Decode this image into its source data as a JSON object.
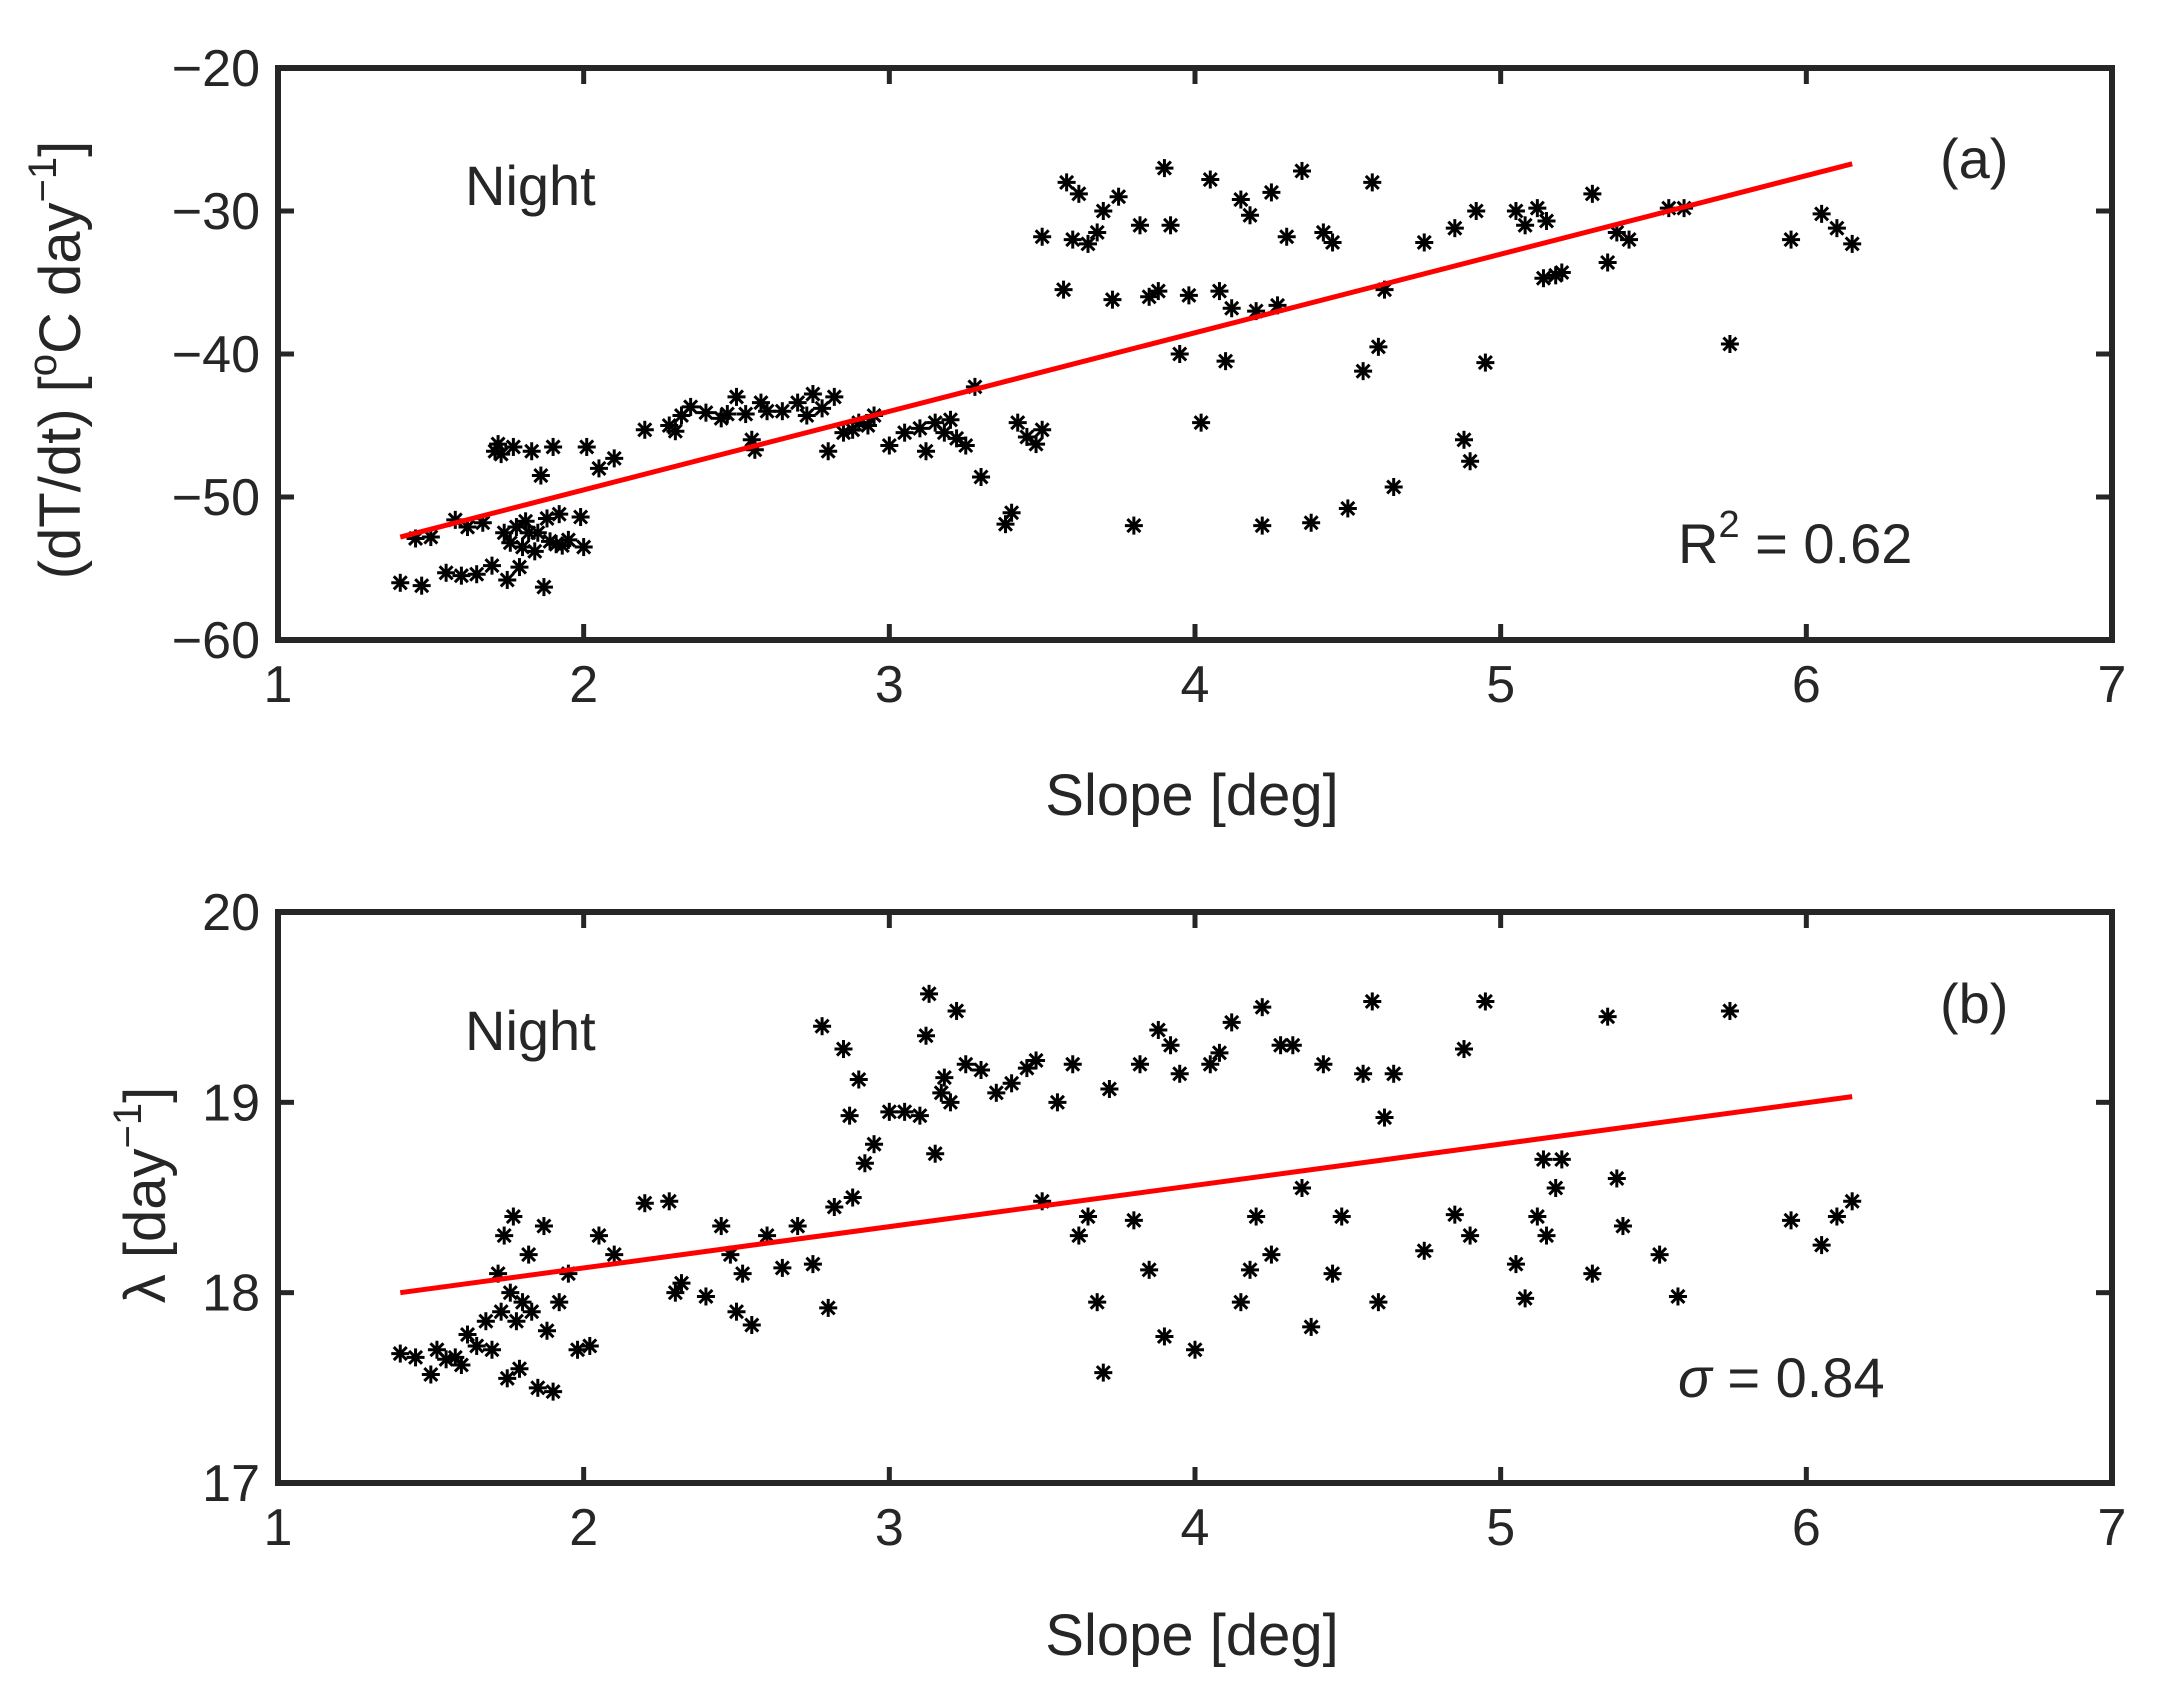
{
  "chart_data": [
    {
      "type": "scatter",
      "panel_label": "(a)",
      "annotation_title": "Night",
      "stat": {
        "prefix": "R",
        "superscript": "2",
        "suffix": " = 0.62"
      },
      "xlabel": "Slope [deg]",
      "ylabel": {
        "main": "(dT/dt) [",
        "sup1": "o",
        "mid": "C day",
        "sup2": "−1",
        "end": "]"
      },
      "xlim": [
        1,
        7
      ],
      "ylim": [
        -60,
        -20
      ],
      "xticks": [
        1,
        2,
        3,
        4,
        5,
        6,
        7
      ],
      "yticks": [
        -60,
        -50,
        -40,
        -30,
        -20
      ],
      "ytick_labels": [
        "−60",
        "−50",
        "−40",
        "−30",
        "−20"
      ],
      "marker": "asterisk",
      "marker_color": "#000000",
      "fit_color": "#ff0000",
      "fit_line": {
        "x": [
          1.4,
          6.15
        ],
        "y": [
          -52.8,
          -26.7
        ]
      },
      "points": [
        [
          1.4,
          -56.0
        ],
        [
          1.47,
          -56.2
        ],
        [
          1.45,
          -52.9
        ],
        [
          1.5,
          -52.8
        ],
        [
          1.55,
          -55.3
        ],
        [
          1.58,
          -51.6
        ],
        [
          1.6,
          -55.5
        ],
        [
          1.62,
          -52.1
        ],
        [
          1.65,
          -55.4
        ],
        [
          1.67,
          -51.8
        ],
        [
          1.7,
          -54.8
        ],
        [
          1.71,
          -46.8
        ],
        [
          1.72,
          -46.3
        ],
        [
          1.73,
          -47.0
        ],
        [
          1.74,
          -52.5
        ],
        [
          1.75,
          -55.8
        ],
        [
          1.76,
          -53.2
        ],
        [
          1.77,
          -46.5
        ],
        [
          1.78,
          -52.1
        ],
        [
          1.79,
          -54.9
        ],
        [
          1.8,
          -53.5
        ],
        [
          1.81,
          -51.7
        ],
        [
          1.82,
          -52.5
        ],
        [
          1.83,
          -46.8
        ],
        [
          1.84,
          -53.8
        ],
        [
          1.85,
          -52.5
        ],
        [
          1.86,
          -48.5
        ],
        [
          1.87,
          -56.3
        ],
        [
          1.88,
          -51.5
        ],
        [
          1.89,
          -53.1
        ],
        [
          1.9,
          -46.5
        ],
        [
          1.91,
          -53.3
        ],
        [
          1.92,
          -51.2
        ],
        [
          1.93,
          -53.4
        ],
        [
          1.95,
          -53.0
        ],
        [
          1.99,
          -51.4
        ],
        [
          2.0,
          -53.5
        ],
        [
          2.01,
          -46.5
        ],
        [
          2.05,
          -48.0
        ],
        [
          2.1,
          -47.3
        ],
        [
          2.2,
          -45.3
        ],
        [
          2.28,
          -45.0
        ],
        [
          2.3,
          -45.4
        ],
        [
          2.32,
          -44.3
        ],
        [
          2.35,
          -43.7
        ],
        [
          2.4,
          -44.1
        ],
        [
          2.45,
          -44.5
        ],
        [
          2.47,
          -44.2
        ],
        [
          2.5,
          -43.0
        ],
        [
          2.53,
          -44.2
        ],
        [
          2.55,
          -46.0
        ],
        [
          2.56,
          -46.7
        ],
        [
          2.58,
          -43.4
        ],
        [
          2.6,
          -44.0
        ],
        [
          2.65,
          -44.0
        ],
        [
          2.7,
          -43.4
        ],
        [
          2.73,
          -44.3
        ],
        [
          2.75,
          -42.8
        ],
        [
          2.78,
          -43.8
        ],
        [
          2.8,
          -46.8
        ],
        [
          2.82,
          -43.0
        ],
        [
          2.85,
          -45.5
        ],
        [
          2.88,
          -45.3
        ],
        [
          2.9,
          -44.8
        ],
        [
          2.93,
          -45.0
        ],
        [
          2.95,
          -44.3
        ],
        [
          3.0,
          -46.4
        ],
        [
          3.05,
          -45.5
        ],
        [
          3.1,
          -45.2
        ],
        [
          3.12,
          -46.8
        ],
        [
          3.15,
          -44.8
        ],
        [
          3.18,
          -45.5
        ],
        [
          3.2,
          -44.6
        ],
        [
          3.22,
          -45.9
        ],
        [
          3.25,
          -46.4
        ],
        [
          3.28,
          -42.3
        ],
        [
          3.3,
          -48.6
        ],
        [
          3.38,
          -51.9
        ],
        [
          3.4,
          -51.1
        ],
        [
          3.42,
          -44.8
        ],
        [
          3.45,
          -45.8
        ],
        [
          3.48,
          -46.3
        ],
        [
          3.5,
          -45.3
        ],
        [
          3.5,
          -31.8
        ],
        [
          3.57,
          -35.5
        ],
        [
          3.58,
          -28.0
        ],
        [
          3.6,
          -32.0
        ],
        [
          3.62,
          -28.8
        ],
        [
          3.65,
          -32.3
        ],
        [
          3.68,
          -31.5
        ],
        [
          3.7,
          -30.0
        ],
        [
          3.73,
          -36.2
        ],
        [
          3.75,
          -29.0
        ],
        [
          3.8,
          -52.0
        ],
        [
          3.82,
          -31.0
        ],
        [
          3.85,
          -36.0
        ],
        [
          3.88,
          -35.6
        ],
        [
          3.9,
          -27.0
        ],
        [
          3.92,
          -31.0
        ],
        [
          3.95,
          -40.0
        ],
        [
          3.98,
          -35.9
        ],
        [
          4.02,
          -44.8
        ],
        [
          4.05,
          -27.8
        ],
        [
          4.08,
          -35.6
        ],
        [
          4.1,
          -40.5
        ],
        [
          4.12,
          -36.8
        ],
        [
          4.15,
          -29.2
        ],
        [
          4.18,
          -30.3
        ],
        [
          4.2,
          -37.0
        ],
        [
          4.22,
          -52.0
        ],
        [
          4.25,
          -28.7
        ],
        [
          4.27,
          -36.6
        ],
        [
          4.3,
          -31.8
        ],
        [
          4.35,
          -27.2
        ],
        [
          4.38,
          -51.8
        ],
        [
          4.42,
          -31.5
        ],
        [
          4.45,
          -32.2
        ],
        [
          4.5,
          -50.8
        ],
        [
          4.55,
          -41.2
        ],
        [
          4.58,
          -28.0
        ],
        [
          4.6,
          -39.5
        ],
        [
          4.62,
          -35.5
        ],
        [
          4.65,
          -49.3
        ],
        [
          4.75,
          -32.2
        ],
        [
          4.85,
          -31.2
        ],
        [
          4.88,
          -46.0
        ],
        [
          4.9,
          -47.5
        ],
        [
          4.92,
          -30.0
        ],
        [
          4.95,
          -40.6
        ],
        [
          5.05,
          -30.0
        ],
        [
          5.08,
          -31.0
        ],
        [
          5.12,
          -29.8
        ],
        [
          5.14,
          -34.7
        ],
        [
          5.15,
          -30.7
        ],
        [
          5.18,
          -34.5
        ],
        [
          5.2,
          -34.3
        ],
        [
          5.3,
          -28.8
        ],
        [
          5.35,
          -33.6
        ],
        [
          5.38,
          -31.5
        ],
        [
          5.42,
          -32.0
        ],
        [
          5.55,
          -29.8
        ],
        [
          5.6,
          -29.8
        ],
        [
          5.75,
          -39.3
        ],
        [
          5.95,
          -32.0
        ],
        [
          6.05,
          -30.2
        ],
        [
          6.1,
          -31.2
        ],
        [
          6.15,
          -32.3
        ]
      ]
    },
    {
      "type": "scatter",
      "panel_label": "(b)",
      "annotation_title": "Night",
      "stat": {
        "symbol": "σ",
        "suffix": " = 0.84"
      },
      "xlabel": "Slope [deg]",
      "ylabel": {
        "main": "λ [day",
        "sup": "−1",
        "end": "]"
      },
      "xlim": [
        1,
        7
      ],
      "ylim": [
        17,
        20
      ],
      "xticks": [
        1,
        2,
        3,
        4,
        5,
        6,
        7
      ],
      "yticks": [
        17,
        18,
        19,
        20
      ],
      "ytick_labels": [
        "17",
        "18",
        "19",
        "20"
      ],
      "marker": "asterisk",
      "marker_color": "#000000",
      "fit_color": "#ff0000",
      "fit_line": {
        "x": [
          1.4,
          6.15
        ],
        "y": [
          18.0,
          19.03
        ]
      },
      "points": [
        [
          1.4,
          17.68
        ],
        [
          1.45,
          17.66
        ],
        [
          1.5,
          17.57
        ],
        [
          1.52,
          17.7
        ],
        [
          1.55,
          17.65
        ],
        [
          1.58,
          17.66
        ],
        [
          1.6,
          17.62
        ],
        [
          1.62,
          17.78
        ],
        [
          1.65,
          17.72
        ],
        [
          1.68,
          17.85
        ],
        [
          1.7,
          17.7
        ],
        [
          1.72,
          18.1
        ],
        [
          1.73,
          17.9
        ],
        [
          1.74,
          18.3
        ],
        [
          1.75,
          17.55
        ],
        [
          1.76,
          18.0
        ],
        [
          1.77,
          18.4
        ],
        [
          1.78,
          17.85
        ],
        [
          1.79,
          17.6
        ],
        [
          1.8,
          17.95
        ],
        [
          1.82,
          18.2
        ],
        [
          1.83,
          17.9
        ],
        [
          1.85,
          17.5
        ],
        [
          1.87,
          18.35
        ],
        [
          1.88,
          17.8
        ],
        [
          1.9,
          17.48
        ],
        [
          1.92,
          17.95
        ],
        [
          1.95,
          18.1
        ],
        [
          1.98,
          17.7
        ],
        [
          2.02,
          17.72
        ],
        [
          2.05,
          18.3
        ],
        [
          2.1,
          18.2
        ],
        [
          2.2,
          18.47
        ],
        [
          2.28,
          18.48
        ],
        [
          2.3,
          18.0
        ],
        [
          2.32,
          18.05
        ],
        [
          2.4,
          17.98
        ],
        [
          2.45,
          18.35
        ],
        [
          2.48,
          18.2
        ],
        [
          2.5,
          17.9
        ],
        [
          2.52,
          18.1
        ],
        [
          2.55,
          17.83
        ],
        [
          2.6,
          18.3
        ],
        [
          2.65,
          18.13
        ],
        [
          2.7,
          18.35
        ],
        [
          2.75,
          18.15
        ],
        [
          2.78,
          19.4
        ],
        [
          2.8,
          17.92
        ],
        [
          2.82,
          18.45
        ],
        [
          2.85,
          19.28
        ],
        [
          2.87,
          18.93
        ],
        [
          2.88,
          18.5
        ],
        [
          2.9,
          19.12
        ],
        [
          2.92,
          18.68
        ],
        [
          2.95,
          18.78
        ],
        [
          3.0,
          18.95
        ],
        [
          3.05,
          18.95
        ],
        [
          3.1,
          18.93
        ],
        [
          3.12,
          19.35
        ],
        [
          3.13,
          19.57
        ],
        [
          3.15,
          18.73
        ],
        [
          3.17,
          19.05
        ],
        [
          3.18,
          19.13
        ],
        [
          3.2,
          19.0
        ],
        [
          3.22,
          19.48
        ],
        [
          3.25,
          19.2
        ],
        [
          3.3,
          19.17
        ],
        [
          3.35,
          19.05
        ],
        [
          3.4,
          19.1
        ],
        [
          3.45,
          19.18
        ],
        [
          3.48,
          19.22
        ],
        [
          3.5,
          18.48
        ],
        [
          3.55,
          19.0
        ],
        [
          3.6,
          19.2
        ],
        [
          3.62,
          18.3
        ],
        [
          3.65,
          18.4
        ],
        [
          3.68,
          17.95
        ],
        [
          3.7,
          17.58
        ],
        [
          3.72,
          19.07
        ],
        [
          3.8,
          18.38
        ],
        [
          3.82,
          19.2
        ],
        [
          3.85,
          18.12
        ],
        [
          3.88,
          19.38
        ],
        [
          3.9,
          17.77
        ],
        [
          3.92,
          19.3
        ],
        [
          3.95,
          19.15
        ],
        [
          4.0,
          17.7
        ],
        [
          4.05,
          19.2
        ],
        [
          4.08,
          19.26
        ],
        [
          4.12,
          19.42
        ],
        [
          4.15,
          17.95
        ],
        [
          4.18,
          18.12
        ],
        [
          4.2,
          18.4
        ],
        [
          4.22,
          19.5
        ],
        [
          4.25,
          18.2
        ],
        [
          4.28,
          19.3
        ],
        [
          4.32,
          19.3
        ],
        [
          4.35,
          18.55
        ],
        [
          4.38,
          17.82
        ],
        [
          4.42,
          19.2
        ],
        [
          4.45,
          18.1
        ],
        [
          4.48,
          18.4
        ],
        [
          4.55,
          19.15
        ],
        [
          4.58,
          19.53
        ],
        [
          4.6,
          17.95
        ],
        [
          4.62,
          18.92
        ],
        [
          4.65,
          19.15
        ],
        [
          4.75,
          18.22
        ],
        [
          4.85,
          18.41
        ],
        [
          4.88,
          19.28
        ],
        [
          4.9,
          18.3
        ],
        [
          4.95,
          19.53
        ],
        [
          5.05,
          18.15
        ],
        [
          5.08,
          17.97
        ],
        [
          5.12,
          18.4
        ],
        [
          5.14,
          18.7
        ],
        [
          5.15,
          18.3
        ],
        [
          5.18,
          18.55
        ],
        [
          5.2,
          18.7
        ],
        [
          5.3,
          18.1
        ],
        [
          5.35,
          19.45
        ],
        [
          5.38,
          18.6
        ],
        [
          5.4,
          18.35
        ],
        [
          5.52,
          18.2
        ],
        [
          5.58,
          17.98
        ],
        [
          5.75,
          19.48
        ],
        [
          5.95,
          18.38
        ],
        [
          6.05,
          18.25
        ],
        [
          6.1,
          18.4
        ],
        [
          6.15,
          18.48
        ]
      ]
    }
  ]
}
